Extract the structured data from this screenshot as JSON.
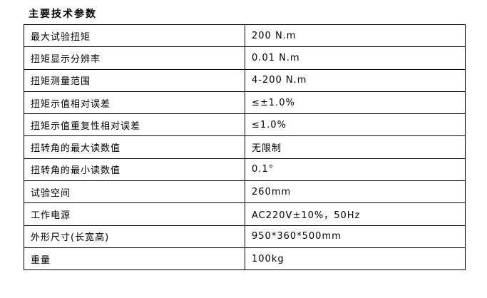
{
  "page_title": "主要技术参数",
  "colors": {
    "background": "#ffffff",
    "text": "#000000",
    "table_border": "#000000"
  },
  "table": {
    "columns": [
      "parameter",
      "value"
    ],
    "rows": [
      {
        "label": "最大试验扭矩",
        "value": "200 N.m"
      },
      {
        "label": "扭矩显示分辨率",
        "value": "0.01 N.m"
      },
      {
        "label": "扭矩测量范围",
        "value": "4-200 N.m"
      },
      {
        "label": "扭矩示值相对误差",
        "value": "≤±1.0%"
      },
      {
        "label": "扭矩示值重复性相对误差",
        "value": "≤1.0%"
      },
      {
        "label": "扭转角的最大读数值",
        "value": "无限制"
      },
      {
        "label": "扭转角的最小读数值",
        "value": "0.1°"
      },
      {
        "label": "试验空间",
        "value": "260mm"
      },
      {
        "label": "工作电源",
        "value": "AC220V±10%，50Hz"
      },
      {
        "label": "外形尺寸(长宽高)",
        "value": "950*360*500mm"
      },
      {
        "label": "重量",
        "value": "100kg"
      }
    ]
  }
}
